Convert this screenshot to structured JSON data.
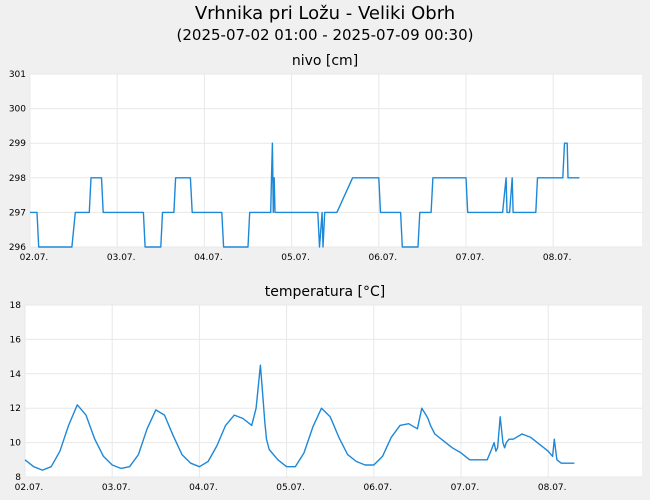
{
  "header": {
    "title": "Vrhnika pri Ložu - Veliki Obrh",
    "subtitle": "(2025-07-02 01:00 - 2025-07-09 00:30)"
  },
  "colors": {
    "series": "#1e88d8",
    "plot_bg": "#ffffff",
    "page_bg": "#f0f0f0"
  },
  "chart_data": [
    {
      "type": "line",
      "title": "nivo [cm]",
      "xlabel": "",
      "ylabel": "",
      "categories": [
        "02.07.",
        "03.07.",
        "04.07.",
        "05.07.",
        "06.07.",
        "07.07.",
        "08.07."
      ],
      "ylim": [
        296,
        301
      ],
      "yticks": [
        296,
        297,
        298,
        299,
        300,
        301
      ],
      "grid": true,
      "series": [
        {
          "name": "nivo",
          "x": [
            0.0,
            0.08,
            0.1,
            0.48,
            0.52,
            0.68,
            0.7,
            0.82,
            0.84,
            1.3,
            1.32,
            1.5,
            1.52,
            1.65,
            1.67,
            1.84,
            1.86,
            2.2,
            2.22,
            2.5,
            2.52,
            2.75,
            2.76,
            2.77,
            2.78,
            2.79,
            2.8,
            2.81,
            2.82,
            2.83,
            3.3,
            3.32,
            3.35,
            3.36,
            3.38,
            3.4,
            3.5,
            3.52,
            3.7,
            3.72,
            4.0,
            4.02,
            4.25,
            4.27,
            4.45,
            4.47,
            4.6,
            4.62,
            5.0,
            5.02,
            5.4,
            5.42,
            5.46,
            5.47,
            5.48,
            5.5,
            5.53,
            5.54,
            5.55,
            5.58,
            5.6,
            5.8,
            5.82,
            6.1,
            6.11,
            6.13,
            6.16,
            6.17,
            6.2,
            6.3
          ],
          "y": [
            297,
            297,
            296,
            296,
            297,
            297,
            298,
            298,
            297,
            297,
            296,
            296,
            297,
            297,
            298,
            298,
            297,
            297,
            296,
            296,
            297,
            297,
            297,
            298,
            299,
            297,
            298,
            297,
            297,
            297,
            297,
            296,
            297,
            296,
            297,
            297,
            297,
            297,
            298,
            298,
            298,
            297,
            297,
            296,
            296,
            297,
            297,
            298,
            298,
            297,
            297,
            297,
            298,
            297,
            297,
            297,
            298,
            297,
            297,
            297,
            297,
            297,
            298,
            298,
            298,
            299,
            299,
            298,
            298,
            298
          ]
        }
      ]
    },
    {
      "type": "line",
      "title": "temperatura [°C]",
      "xlabel": "",
      "ylabel": "",
      "categories": [
        "02.07.",
        "03.07.",
        "04.07.",
        "05.07.",
        "06.07.",
        "07.07.",
        "08.07."
      ],
      "ylim": [
        8,
        18
      ],
      "yticks": [
        8,
        10,
        12,
        14,
        16,
        18
      ],
      "grid": true,
      "series": [
        {
          "name": "temperatura",
          "x": [
            0.0,
            0.1,
            0.2,
            0.3,
            0.4,
            0.5,
            0.6,
            0.7,
            0.8,
            0.9,
            1.0,
            1.1,
            1.2,
            1.3,
            1.4,
            1.5,
            1.6,
            1.7,
            1.8,
            1.9,
            2.0,
            2.1,
            2.2,
            2.3,
            2.4,
            2.5,
            2.6,
            2.65,
            2.7,
            2.73,
            2.75,
            2.77,
            2.8,
            2.9,
            3.0,
            3.1,
            3.2,
            3.3,
            3.4,
            3.5,
            3.6,
            3.7,
            3.8,
            3.9,
            4.0,
            4.1,
            4.2,
            4.3,
            4.4,
            4.5,
            4.55,
            4.6,
            4.62,
            4.65,
            4.7,
            4.8,
            4.9,
            5.0,
            5.1,
            5.2,
            5.3,
            5.35,
            5.38,
            5.4,
            5.42,
            5.45,
            5.48,
            5.5,
            5.52,
            5.55,
            5.6,
            5.7,
            5.8,
            5.9,
            6.0,
            6.05,
            6.07,
            6.1,
            6.15,
            6.2,
            6.3
          ],
          "y": [
            9.0,
            8.6,
            8.4,
            8.6,
            9.5,
            11.0,
            12.2,
            11.6,
            10.2,
            9.2,
            8.7,
            8.5,
            8.6,
            9.3,
            10.8,
            11.9,
            11.6,
            10.4,
            9.3,
            8.8,
            8.6,
            8.9,
            9.8,
            11.0,
            11.6,
            11.4,
            11.0,
            12.0,
            14.5,
            12.5,
            11.2,
            10.2,
            9.6,
            9.0,
            8.6,
            8.6,
            9.4,
            10.9,
            12.0,
            11.5,
            10.3,
            9.3,
            8.9,
            8.7,
            8.7,
            9.2,
            10.3,
            11.0,
            11.1,
            10.8,
            12.0,
            11.6,
            11.4,
            11.0,
            10.5,
            10.1,
            9.7,
            9.4,
            9.0,
            9.0,
            9.0,
            9.6,
            10.0,
            9.5,
            9.7,
            11.5,
            10.0,
            9.7,
            10.0,
            10.2,
            10.2,
            10.5,
            10.3,
            9.9,
            9.5,
            9.2,
            10.2,
            9.0,
            8.8,
            8.8,
            8.8
          ]
        }
      ]
    }
  ]
}
